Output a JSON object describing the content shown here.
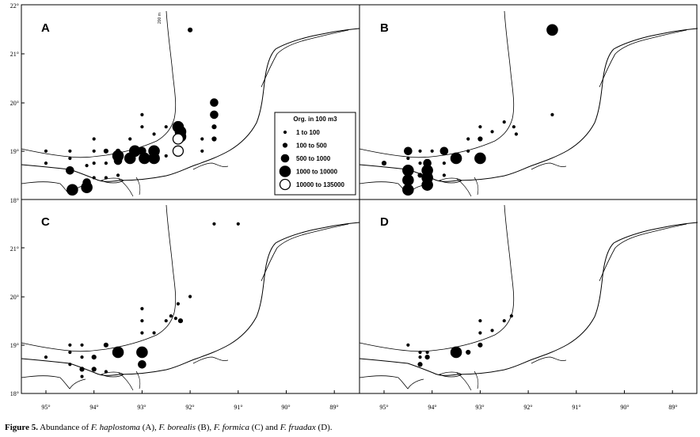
{
  "figure_caption": {
    "label": "Figure 5.",
    "text_before": " Abundance of ",
    "species1": "F. haplostoma",
    "mid1": " (A), ",
    "species2": "F. borealis",
    "mid2": " (B), ",
    "species3": "F. formica",
    "mid3": " (C) and ",
    "species4": "F. fruadax",
    "end": " (D)."
  },
  "longitude_ticks": [
    "95°",
    "94°",
    "93°",
    "92°",
    "91°",
    "90°",
    "89°"
  ],
  "latitude_ticks_top": [
    "22°",
    "21°",
    "20°",
    "19°",
    "18°"
  ],
  "latitude_ticks_bottom": [
    "21°",
    "20°",
    "19°",
    "18°"
  ],
  "isobath_label": "200 m",
  "legend": {
    "title": "Org. in 100 m3",
    "entries": [
      {
        "label": "1  to  100",
        "size_class": 1,
        "fill": "#000000"
      },
      {
        "label": "100  to  500",
        "size_class": 2,
        "fill": "#000000"
      },
      {
        "label": "500  to  1000",
        "size_class": 3,
        "fill": "#000000"
      },
      {
        "label": "1000  to  10000",
        "size_class": 4,
        "fill": "#000000"
      },
      {
        "label": "10000  to  135000",
        "size_class": 5,
        "fill": "#ffffff"
      }
    ]
  },
  "colors": {
    "line": "#000000",
    "background": "#ffffff"
  },
  "panels": [
    {
      "label": "A",
      "stations": [
        {
          "lon": 95.0,
          "lat": 19.0,
          "class": 1
        },
        {
          "lon": 95.0,
          "lat": 18.75,
          "class": 1
        },
        {
          "lon": 94.5,
          "lat": 19.0,
          "class": 1
        },
        {
          "lon": 94.5,
          "lat": 18.85,
          "class": 1
        },
        {
          "lon": 94.5,
          "lat": 18.6,
          "class": 3
        },
        {
          "lon": 94.45,
          "lat": 18.2,
          "class": 4
        },
        {
          "lon": 94.15,
          "lat": 18.7,
          "class": 1
        },
        {
          "lon": 94.15,
          "lat": 18.35,
          "class": 3
        },
        {
          "lon": 94.15,
          "lat": 18.25,
          "class": 4
        },
        {
          "lon": 94.0,
          "lat": 18.75,
          "class": 1
        },
        {
          "lon": 94.0,
          "lat": 19.25,
          "class": 1
        },
        {
          "lon": 94.0,
          "lat": 19.0,
          "class": 1
        },
        {
          "lon": 94.0,
          "lat": 18.45,
          "class": 1
        },
        {
          "lon": 93.75,
          "lat": 19.0,
          "class": 2
        },
        {
          "lon": 93.75,
          "lat": 18.75,
          "class": 1
        },
        {
          "lon": 93.75,
          "lat": 18.45,
          "class": 1
        },
        {
          "lon": 93.5,
          "lat": 19.0,
          "class": 2
        },
        {
          "lon": 93.5,
          "lat": 18.9,
          "class": 4
        },
        {
          "lon": 93.5,
          "lat": 18.8,
          "class": 3
        },
        {
          "lon": 93.5,
          "lat": 18.5,
          "class": 1
        },
        {
          "lon": 93.25,
          "lat": 19.25,
          "class": 1
        },
        {
          "lon": 93.25,
          "lat": 18.85,
          "class": 4
        },
        {
          "lon": 93.15,
          "lat": 19.0,
          "class": 4
        },
        {
          "lon": 93.0,
          "lat": 19.75,
          "class": 1
        },
        {
          "lon": 93.0,
          "lat": 19.5,
          "class": 1
        },
        {
          "lon": 93.0,
          "lat": 19.0,
          "class": 3
        },
        {
          "lon": 92.95,
          "lat": 18.85,
          "class": 4
        },
        {
          "lon": 92.75,
          "lat": 19.35,
          "class": 1
        },
        {
          "lon": 92.75,
          "lat": 19.0,
          "class": 4
        },
        {
          "lon": 92.75,
          "lat": 18.85,
          "class": 4
        },
        {
          "lon": 92.5,
          "lat": 19.5,
          "class": 1
        },
        {
          "lon": 92.5,
          "lat": 18.9,
          "class": 1
        },
        {
          "lon": 92.25,
          "lat": 19.5,
          "class": 4
        },
        {
          "lon": 92.2,
          "lat": 19.4,
          "class": 4
        },
        {
          "lon": 92.2,
          "lat": 19.3,
          "class": 4
        },
        {
          "lon": 92.25,
          "lat": 19.25,
          "class": 5
        },
        {
          "lon": 92.25,
          "lat": 19.0,
          "class": 5
        },
        {
          "lon": 91.75,
          "lat": 19.25,
          "class": 1
        },
        {
          "lon": 91.75,
          "lat": 19.0,
          "class": 1
        },
        {
          "lon": 91.5,
          "lat": 20.0,
          "class": 3
        },
        {
          "lon": 91.5,
          "lat": 19.75,
          "class": 3
        },
        {
          "lon": 91.5,
          "lat": 19.5,
          "class": 2
        },
        {
          "lon": 91.5,
          "lat": 19.25,
          "class": 2
        },
        {
          "lon": 92.0,
          "lat": 21.5,
          "class": 2
        }
      ]
    },
    {
      "label": "B",
      "stations": [
        {
          "lon": 95.0,
          "lat": 18.75,
          "class": 2
        },
        {
          "lon": 94.5,
          "lat": 19.0,
          "class": 3
        },
        {
          "lon": 94.5,
          "lat": 18.85,
          "class": 1
        },
        {
          "lon": 94.5,
          "lat": 18.6,
          "class": 4
        },
        {
          "lon": 94.5,
          "lat": 18.4,
          "class": 4
        },
        {
          "lon": 94.5,
          "lat": 18.2,
          "class": 4
        },
        {
          "lon": 94.25,
          "lat": 19.0,
          "class": 1
        },
        {
          "lon": 94.25,
          "lat": 18.75,
          "class": 1
        },
        {
          "lon": 94.25,
          "lat": 18.5,
          "class": 2
        },
        {
          "lon": 94.1,
          "lat": 18.75,
          "class": 3
        },
        {
          "lon": 94.1,
          "lat": 18.6,
          "class": 4
        },
        {
          "lon": 94.1,
          "lat": 18.45,
          "class": 4
        },
        {
          "lon": 94.1,
          "lat": 18.3,
          "class": 4
        },
        {
          "lon": 94.0,
          "lat": 19.0,
          "class": 1
        },
        {
          "lon": 93.75,
          "lat": 18.75,
          "class": 1
        },
        {
          "lon": 93.75,
          "lat": 18.5,
          "class": 1
        },
        {
          "lon": 93.75,
          "lat": 19.0,
          "class": 3
        },
        {
          "lon": 93.5,
          "lat": 18.85,
          "class": 4
        },
        {
          "lon": 93.25,
          "lat": 19.0,
          "class": 1
        },
        {
          "lon": 93.25,
          "lat": 19.25,
          "class": 1
        },
        {
          "lon": 93.0,
          "lat": 18.85,
          "class": 4
        },
        {
          "lon": 93.0,
          "lat": 19.25,
          "class": 2
        },
        {
          "lon": 93.0,
          "lat": 19.5,
          "class": 1
        },
        {
          "lon": 92.75,
          "lat": 19.4,
          "class": 1
        },
        {
          "lon": 92.5,
          "lat": 19.6,
          "class": 1
        },
        {
          "lon": 92.3,
          "lat": 19.5,
          "class": 1
        },
        {
          "lon": 92.25,
          "lat": 19.35,
          "class": 1
        },
        {
          "lon": 91.5,
          "lat": 19.75,
          "class": 1
        },
        {
          "lon": 91.5,
          "lat": 21.5,
          "class": 4
        }
      ]
    },
    {
      "label": "C",
      "stations": [
        {
          "lon": 95.0,
          "lat": 18.75,
          "class": 1
        },
        {
          "lon": 94.5,
          "lat": 19.0,
          "class": 1
        },
        {
          "lon": 94.5,
          "lat": 18.85,
          "class": 1
        },
        {
          "lon": 94.5,
          "lat": 18.6,
          "class": 1
        },
        {
          "lon": 94.25,
          "lat": 19.0,
          "class": 1
        },
        {
          "lon": 94.25,
          "lat": 18.75,
          "class": 1
        },
        {
          "lon": 94.25,
          "lat": 18.5,
          "class": 2
        },
        {
          "lon": 94.25,
          "lat": 18.35,
          "class": 1
        },
        {
          "lon": 94.0,
          "lat": 18.75,
          "class": 2
        },
        {
          "lon": 94.0,
          "lat": 18.5,
          "class": 2
        },
        {
          "lon": 93.75,
          "lat": 19.0,
          "class": 2
        },
        {
          "lon": 93.75,
          "lat": 18.45,
          "class": 1
        },
        {
          "lon": 93.5,
          "lat": 18.85,
          "class": 4
        },
        {
          "lon": 93.0,
          "lat": 18.85,
          "class": 4
        },
        {
          "lon": 93.0,
          "lat": 18.6,
          "class": 3
        },
        {
          "lon": 93.0,
          "lat": 19.25,
          "class": 1
        },
        {
          "lon": 93.0,
          "lat": 19.5,
          "class": 1
        },
        {
          "lon": 93.0,
          "lat": 19.75,
          "class": 1
        },
        {
          "lon": 92.75,
          "lat": 19.25,
          "class": 1
        },
        {
          "lon": 92.5,
          "lat": 19.5,
          "class": 1
        },
        {
          "lon": 92.4,
          "lat": 19.6,
          "class": 1
        },
        {
          "lon": 92.3,
          "lat": 19.55,
          "class": 1
        },
        {
          "lon": 92.2,
          "lat": 19.5,
          "class": 2
        },
        {
          "lon": 92.25,
          "lat": 19.85,
          "class": 1
        },
        {
          "lon": 92.0,
          "lat": 20.0,
          "class": 1
        },
        {
          "lon": 91.5,
          "lat": 21.5,
          "class": 1
        },
        {
          "lon": 91.0,
          "lat": 21.5,
          "class": 1
        }
      ]
    },
    {
      "label": "D",
      "stations": [
        {
          "lon": 94.5,
          "lat": 19.0,
          "class": 1
        },
        {
          "lon": 94.25,
          "lat": 18.85,
          "class": 1
        },
        {
          "lon": 94.25,
          "lat": 18.75,
          "class": 1
        },
        {
          "lon": 94.25,
          "lat": 18.6,
          "class": 2
        },
        {
          "lon": 94.1,
          "lat": 18.85,
          "class": 1
        },
        {
          "lon": 94.1,
          "lat": 18.75,
          "class": 2
        },
        {
          "lon": 93.5,
          "lat": 18.85,
          "class": 4
        },
        {
          "lon": 93.25,
          "lat": 18.85,
          "class": 2
        },
        {
          "lon": 93.0,
          "lat": 19.0,
          "class": 2
        },
        {
          "lon": 93.0,
          "lat": 19.25,
          "class": 1
        },
        {
          "lon": 93.0,
          "lat": 19.5,
          "class": 1
        },
        {
          "lon": 92.75,
          "lat": 19.3,
          "class": 1
        },
        {
          "lon": 92.5,
          "lat": 19.5,
          "class": 1
        },
        {
          "lon": 92.35,
          "lat": 19.6,
          "class": 1
        }
      ]
    }
  ]
}
